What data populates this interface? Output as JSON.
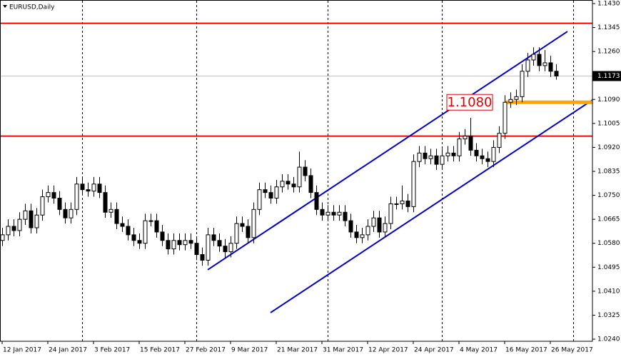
{
  "chart_data": {
    "type": "candlestick",
    "title": "EURUSD,Daily",
    "up_color": "#ffffff",
    "down_color": "#000000",
    "xlim": [
      -0.375,
      103.375
    ],
    "ylim": [
      1.024,
      1.143
    ],
    "yticks": [
      {
        "value": 1.143,
        "label": "1.1430"
      },
      {
        "value": 1.1345,
        "label": "1.1345"
      },
      {
        "value": 1.126,
        "label": "1.1260"
      },
      {
        "value": 1.109,
        "label": "1.1090"
      },
      {
        "value": 1.1005,
        "label": "1.1005"
      },
      {
        "value": 1.092,
        "label": "1.0920"
      },
      {
        "value": 1.0835,
        "label": "1.0835"
      },
      {
        "value": 1.075,
        "label": "1.0750"
      },
      {
        "value": 1.0665,
        "label": "1.0665"
      },
      {
        "value": 1.058,
        "label": "1.0580"
      },
      {
        "value": 1.0495,
        "label": "1.0495"
      },
      {
        "value": 1.041,
        "label": "1.0410"
      },
      {
        "value": 1.0325,
        "label": "1.0325"
      },
      {
        "value": 1.024,
        "label": "1.0240"
      }
    ],
    "xticks": [
      {
        "value": 0,
        "label": "12 Jan 2017"
      },
      {
        "value": 8,
        "label": "24 Jan 2017"
      },
      {
        "value": 16,
        "label": "3 Feb 2017"
      },
      {
        "value": 24,
        "label": "15 Feb 2017"
      },
      {
        "value": 32,
        "label": "27 Feb 2017"
      },
      {
        "value": 40,
        "label": "9 Mar 2017"
      },
      {
        "value": 48,
        "label": "21 Mar 2017"
      },
      {
        "value": 56,
        "label": "31 Mar 2017"
      },
      {
        "value": 64,
        "label": "12 Apr 2017"
      },
      {
        "value": 72,
        "label": "24 Apr 2017"
      },
      {
        "value": 80,
        "label": "4 May 2017"
      },
      {
        "value": 88,
        "label": "16 May 2017"
      },
      {
        "value": 96,
        "label": "26 May 2017"
      }
    ],
    "separators": [
      14,
      34,
      57,
      77,
      100
    ],
    "hlines": [
      {
        "value": 1.136,
        "color": "#ff0000"
      },
      {
        "value": 1.096,
        "color": "#ff0000"
      }
    ],
    "last_price": {
      "value": 1.1173,
      "label": "1.1173"
    },
    "level": {
      "value": 1.108,
      "label": "1.1080",
      "color": "#ffa500",
      "from": 88
    },
    "trendlines": [
      {
        "x": [
          36,
          99
        ],
        "y": [
          1.0486,
          1.1331
        ],
        "color": "#0000cc"
      },
      {
        "x": [
          47,
          103.375
        ],
        "y": [
          1.0334,
          1.1088
        ],
        "color": "#0000cc"
      }
    ],
    "ohlc": [
      [
        1.059,
        1.0635,
        1.057,
        1.061
      ],
      [
        1.061,
        1.0665,
        1.059,
        1.064
      ],
      [
        1.064,
        1.0665,
        1.0605,
        1.0625
      ],
      [
        1.0625,
        1.069,
        1.0605,
        1.0665
      ],
      [
        1.0665,
        1.072,
        1.0645,
        1.0695
      ],
      [
        1.0695,
        1.072,
        1.0615,
        1.0635
      ],
      [
        1.0635,
        1.0705,
        1.0615,
        1.068
      ],
      [
        1.068,
        1.077,
        1.066,
        1.0745
      ],
      [
        1.0745,
        1.0785,
        1.0725,
        1.076
      ],
      [
        1.076,
        1.0785,
        1.072,
        1.074
      ],
      [
        1.074,
        1.0765,
        1.068,
        1.07
      ],
      [
        1.07,
        1.0725,
        1.065,
        1.067
      ],
      [
        1.067,
        1.0725,
        1.065,
        1.07
      ],
      [
        1.07,
        1.0815,
        1.068,
        1.079
      ],
      [
        1.079,
        1.0815,
        1.075,
        1.077
      ],
      [
        1.077,
        1.0795,
        1.0745,
        1.0765
      ],
      [
        1.0765,
        1.0815,
        1.0745,
        1.079
      ],
      [
        1.079,
        1.0815,
        1.074,
        1.076
      ],
      [
        1.076,
        1.0785,
        1.067,
        1.069
      ],
      [
        1.069,
        1.0725,
        1.067,
        1.07
      ],
      [
        1.07,
        1.0725,
        1.063,
        1.065
      ],
      [
        1.065,
        1.0675,
        1.062,
        1.064
      ],
      [
        1.064,
        1.0665,
        1.059,
        1.061
      ],
      [
        1.061,
        1.0635,
        1.057,
        1.059
      ],
      [
        1.059,
        1.0615,
        1.056,
        1.058
      ],
      [
        1.058,
        1.0685,
        1.056,
        1.066
      ],
      [
        1.066,
        1.0685,
        1.064,
        1.066
      ],
      [
        1.066,
        1.0685,
        1.06,
        1.062
      ],
      [
        1.062,
        1.0645,
        1.057,
        1.059
      ],
      [
        1.059,
        1.0615,
        1.054,
        1.056
      ],
      [
        1.056,
        1.0615,
        1.054,
        1.059
      ],
      [
        1.059,
        1.0615,
        1.0555,
        1.0575
      ],
      [
        1.0575,
        1.0615,
        1.0555,
        1.059
      ],
      [
        1.059,
        1.0615,
        1.056,
        1.058
      ],
      [
        1.058,
        1.0605,
        1.052,
        1.054
      ],
      [
        1.054,
        1.0565,
        1.05,
        1.052
      ],
      [
        1.052,
        1.0635,
        1.05,
        1.061
      ],
      [
        1.061,
        1.0635,
        1.057,
        1.059
      ],
      [
        1.059,
        1.0615,
        1.055,
        1.057
      ],
      [
        1.057,
        1.0595,
        1.053,
        1.055
      ],
      [
        1.055,
        1.0605,
        1.053,
        1.058
      ],
      [
        1.058,
        1.0675,
        1.056,
        1.065
      ],
      [
        1.065,
        1.0675,
        1.062,
        1.064
      ],
      [
        1.064,
        1.0665,
        1.058,
        1.06
      ],
      [
        1.06,
        1.0725,
        1.058,
        1.07
      ],
      [
        1.07,
        1.0795,
        1.068,
        1.077
      ],
      [
        1.077,
        1.0795,
        1.074,
        1.076
      ],
      [
        1.076,
        1.0785,
        1.072,
        1.074
      ],
      [
        1.074,
        1.0805,
        1.072,
        1.078
      ],
      [
        1.078,
        1.0825,
        1.076,
        1.08
      ],
      [
        1.08,
        1.0825,
        1.077,
        1.079
      ],
      [
        1.079,
        1.0815,
        1.076,
        1.078
      ],
      [
        1.078,
        1.0905,
        1.076,
        1.085
      ],
      [
        1.085,
        1.0875,
        1.08,
        1.082
      ],
      [
        1.082,
        1.0845,
        1.074,
        1.076
      ],
      [
        1.076,
        1.0785,
        1.068,
        1.07
      ],
      [
        1.07,
        1.0725,
        1.066,
        1.068
      ],
      [
        1.068,
        1.0715,
        1.066,
        1.069
      ],
      [
        1.069,
        1.0715,
        1.066,
        1.068
      ],
      [
        1.068,
        1.0715,
        1.066,
        1.069
      ],
      [
        1.069,
        1.0715,
        1.064,
        1.066
      ],
      [
        1.066,
        1.0685,
        1.06,
        1.062
      ],
      [
        1.062,
        1.0645,
        1.058,
        1.06
      ],
      [
        1.06,
        1.0635,
        1.058,
        1.061
      ],
      [
        1.061,
        1.0665,
        1.059,
        1.064
      ],
      [
        1.064,
        1.0695,
        1.062,
        1.067
      ],
      [
        1.067,
        1.0695,
        1.06,
        1.062
      ],
      [
        1.062,
        1.0675,
        1.06,
        1.065
      ],
      [
        1.065,
        1.0745,
        1.063,
        1.072
      ],
      [
        1.072,
        1.0745,
        1.07,
        1.072
      ],
      [
        1.072,
        1.0785,
        1.07,
        1.073
      ],
      [
        1.073,
        1.0755,
        1.069,
        1.071
      ],
      [
        1.071,
        1.0895,
        1.069,
        1.087
      ],
      [
        1.087,
        1.0925,
        1.085,
        1.09
      ],
      [
        1.09,
        1.0925,
        1.086,
        1.088
      ],
      [
        1.088,
        1.0915,
        1.086,
        1.089
      ],
      [
        1.089,
        1.0915,
        1.084,
        1.086
      ],
      [
        1.086,
        1.0915,
        1.084,
        1.089
      ],
      [
        1.089,
        1.0925,
        1.087,
        1.09
      ],
      [
        1.09,
        1.0925,
        1.087,
        1.089
      ],
      [
        1.089,
        1.0975,
        1.087,
        1.095
      ],
      [
        1.095,
        1.0985,
        1.093,
        1.096
      ],
      [
        1.096,
        1.1025,
        1.089,
        1.091
      ],
      [
        1.091,
        1.0935,
        1.087,
        1.089
      ],
      [
        1.089,
        1.0915,
        1.086,
        1.088
      ],
      [
        1.088,
        1.0905,
        1.085,
        1.087
      ],
      [
        1.087,
        1.0945,
        1.085,
        1.092
      ],
      [
        1.092,
        1.0995,
        1.09,
        1.097
      ],
      [
        1.097,
        1.1105,
        1.095,
        1.108
      ],
      [
        1.108,
        1.1115,
        1.106,
        1.109
      ],
      [
        1.109,
        1.1125,
        1.107,
        1.11
      ],
      [
        1.11,
        1.1215,
        1.108,
        1.119
      ],
      [
        1.119,
        1.1255,
        1.117,
        1.123
      ],
      [
        1.123,
        1.1275,
        1.121,
        1.125
      ],
      [
        1.125,
        1.1275,
        1.119,
        1.121
      ],
      [
        1.121,
        1.1265,
        1.119,
        1.122
      ],
      [
        1.122,
        1.1245,
        1.117,
        1.119
      ],
      [
        1.119,
        1.1215,
        1.116,
        1.1173
      ]
    ]
  }
}
